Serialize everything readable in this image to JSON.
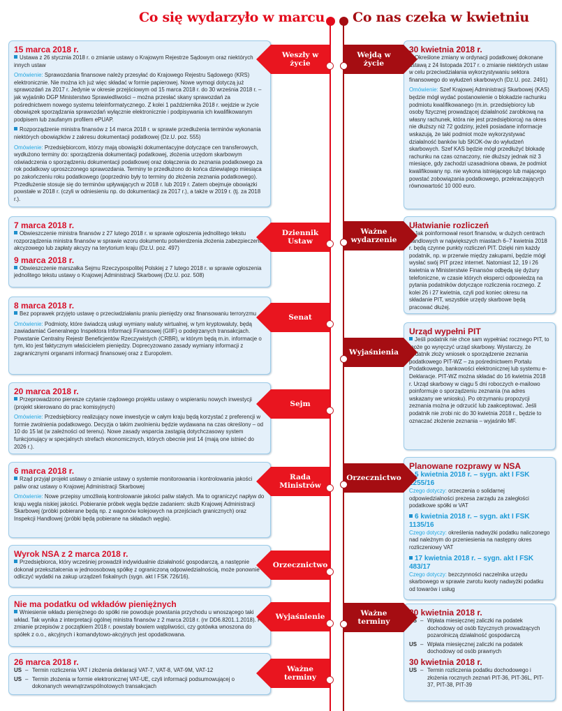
{
  "header": {
    "left_title": "Co się wydarzyło w marcu",
    "right_title": "Co nas czeka w kwietniu"
  },
  "colors": {
    "march": "#e9151f",
    "april": "#a50d12",
    "box_bg": "#e4f0fa",
    "note": "#22a6df"
  },
  "left": [
    {
      "label": "Weszły w życie",
      "blocks": [
        {
          "type": "title",
          "text": "15 marca 2018 r."
        },
        {
          "type": "bullet",
          "text": "Ustawa z 26 stycznia 2018 r. o zmianie ustawy o Krajowym Rejestrze Sądowym oraz niektórych innych ustaw"
        },
        {
          "type": "note",
          "label": "Omówienie:",
          "text": "Sprawozdania finansowe należy przesyłać do Krajowego Rejestru Sądowego (KRS) elektronicznie. Nie można ich już więc składać w formie papierowej. Nowe wymogi dotyczą już sprawozdań za 2017 r. Jedynie w okresie przejściowym od 15 marca 2018 r. do 30 września 2018 r. – jak wyjaśniło DGP Ministerstwo Sprawiedliwości – można przesłać skany sprawozdań za pośrednictwem nowego systemu teleinformatycznego. Z kolei 1 października 2018 r. wejdzie w życie obowiązek sporządzania sprawozdań wyłącznie elektronicznie i podpisywania ich kwalifikowanym podpisem lub zaufanym profilem ePUAP."
        },
        {
          "type": "bullet",
          "text": "Rozporządzenie ministra finansów z 14 marca 2018 r. w sprawie przedłużenia terminów wykonania niektórych obowiązków z zakresu dokumentacji podatkowej (Dz.U. poz. 555)"
        },
        {
          "type": "note",
          "label": "Omówienie:",
          "text": "Przedsiębiorcom, którzy mają obowiązki dokumentacyjne dotyczące cen transferowych, wydłużono terminy do: sporządzenia dokumentacji podatkowej, złożenia urzędom skarbowym oświadczenia o sporządzeniu dokumentacji podatkowej oraz dołączenia do zeznania podatkowego za rok podatkowy uproszczonego sprawozdania. Terminy te przedłużono do końca dziewiątego miesiąca po zakończeniu roku podatkowego (poprzednio były to terminy do złożenia zeznania podatkowego). Przedłużenie stosuje się do terminów upływających w 2018 r. lub 2019 r. Zatem obejmuje obowiązki powstałe w 2018 r. (czyli w odniesieniu np. do dokumentacji za 2017 r.), a także w 2019 r. (tj. za 2018 r.)."
        }
      ]
    },
    {
      "label": "Dziennik Ustaw",
      "blocks": [
        {
          "type": "title",
          "text": "7 marca 2018 r."
        },
        {
          "type": "bullet",
          "text": "Obwieszczenie ministra finansów z 27 lutego 2018 r. w sprawie ogłoszenia jednolitego tekstu rozporządzenia ministra finansów w sprawie wzoru dokumentu potwierdzenia złożenia zabezpieczenia akcyzowego lub zapłaty akcyzy na terytorium kraju (Dz.U. poz. 497)"
        },
        {
          "type": "title",
          "text": "9 marca 2018 r."
        },
        {
          "type": "bullet",
          "text": "Obwieszczenie marszałka Sejmu Rzeczypospolitej Polskiej z 7 lutego 2018 r. w sprawie ogłoszenia jednolitego tekstu ustawy o Krajowej Administracji Skarbowej (Dz.U. poz. 508)"
        }
      ]
    },
    {
      "label": "Senat",
      "blocks": [
        {
          "type": "title",
          "text": "8 marca 2018 r."
        },
        {
          "type": "bullet",
          "text": "Bez poprawek przyjęto ustawę o przeciwdziałaniu praniu pieniędzy oraz finansowaniu terroryzmu"
        },
        {
          "type": "note",
          "label": "Omówienie:",
          "text": "Podmioty, które świadczą usługi wymiany waluty wirtualnej, w tym kryptowaluty, będą zawiadamiać Generalnego Inspektora Informacji Finansowej (GIIF) o podejrzanych transakcjach. Powstanie Centralny Rejestr Beneficjentów Rzeczywistych (CRBR), w którym będą m.in. informacje o tym, kto jest faktycznym właścicielem pieniędzy. Doprecyzowano zasady wymiany informacji z zagranicznymi organami informacji finansowej oraz z Europolem."
        }
      ]
    },
    {
      "label": "Sejm",
      "blocks": [
        {
          "type": "title",
          "text": "20 marca 2018 r."
        },
        {
          "type": "bullet",
          "text": "Przeprowadzono pierwsze czytanie rządowego projektu ustawy o wspieraniu nowych inwestycji (projekt skierowano do prac komisyjnych)"
        },
        {
          "type": "note",
          "label": "Omówienie:",
          "text": "Przedsiębiorcy realizujący nowe inwestycje w całym kraju będą korzystać z preferencji w formie zwolnienia podatkowego. Decyzja o takim zwolnieniu będzie wydawana na czas określony – od 10 do 15 lat (w zależności od terenu). Nowe zasady wsparcia zastąpią dotychczasowy system funkcjonujący w specjalnych strefach ekonomicznych, których obecnie jest 14 (mają one istnieć do 2026 r.)."
        }
      ]
    },
    {
      "label": "Rada Ministrów",
      "blocks": [
        {
          "type": "title",
          "text": "6 marca 2018 r."
        },
        {
          "type": "bullet",
          "text": "Rząd przyjął projekt ustawy o zmianie ustawy o systemie monitorowania i kontrolowania jakości paliw oraz ustawy o Krajowej Administracji Skarbowej"
        },
        {
          "type": "note",
          "label": "Omówienie:",
          "text": "Nowe przepisy umożliwią kontrolowanie jakości paliw stałych. Ma to ograniczyć napływ do kraju węgla niskiej jakości. Pobieranie próbek węgla będzie zadaniem: służb Krajowej Administracji Skarbowej (próbki pobierane będą np. z wagonów kolejowych na przejściach granicznych) oraz Inspekcji Handlowej (próbki będą pobierane na składach węgla)."
        }
      ]
    },
    {
      "label": "Orzecznictwo",
      "blocks": [
        {
          "type": "title",
          "text": "Wyrok NSA z 2 marca 2018 r."
        },
        {
          "type": "bullet",
          "text": "Przedsiębiorca, który wcześniej prowadził indywidualnie działalność gospodarczą, a następnie dokonał przekształcenia w jednoosobową spółkę z ograniczoną odpowiedzialnością, może ponownie odliczyć wydatki na zakup urządzeń fiskalnych (sygn. akt I FSK 726/16)."
        }
      ]
    },
    {
      "label": "Wyjaśnienie",
      "blocks": [
        {
          "type": "title",
          "text": "Nie ma podatku od wkładów pieniężnych"
        },
        {
          "type": "bullet",
          "text": "Wniesienie wkładu pieniężnego do spółki nie powoduje powstania przychodu u wnoszącego taki wkład. Tak wynika z interpretacji ogólnej ministra finansów z 2 marca 2018 r. (nr DD6.8201.1.2018). Po zmianie przepisów z początkiem 2018 r. powstały bowiem wątpliwości, czy gotówka wnoszona do spółek z o.o., akcyjnych i komandytowo-akcyjnych jest opodatkowana."
        }
      ]
    },
    {
      "label": "Ważne terminy",
      "blocks": [
        {
          "type": "title",
          "text": "26 marca 2018 r."
        },
        {
          "type": "us",
          "label": "US",
          "text": "Termin rozliczenia VAT i złożenia deklaracji VAT-7, VAT-8, VAT-9M, VAT-12"
        },
        {
          "type": "us",
          "label": "US",
          "text": "Termin złożenia w formie elektronicznej VAT-UE, czyli informacji podsumowującej o dokonanych wewnątrzwspólnotowych transakcjach"
        }
      ]
    }
  ],
  "right": [
    {
      "label": "Wejdą w życie",
      "blocks": [
        {
          "type": "title",
          "text": "30 kwietnia 2018 r."
        },
        {
          "type": "bullet",
          "text": "Określone zmiany w ordynacji podatkowej dokonane ustawą z 24 listopada 2017 r. o zmianie niektórych ustaw w celu przeciwdziałania wykorzystywaniu sektora finansowego do wyłudzeń skarbowych (Dz.U. poz. 2491)"
        },
        {
          "type": "note",
          "label": "Omówienie:",
          "text": "Szef Krajowej Administracji Skarbowej (KAS) będzie mógł wydać postanowienie o blokadzie rachunku podmiotu kwalifikowanego (m.in. przedsiębiorcy lub osoby fizycznej prowadzącej działalność zarobkową na własny rachunek, która nie jest przedsiębiorcą) na okres nie dłuższy niż 72 godziny, jeżeli posiadane informacje wskazują, że taki podmiot może wykorzystywać działalność banków lub SKOK-ów do wyłudzeń skarbowych. Szef KAS będzie mógł przedłużyć blokadę rachunku na czas oznaczony, nie dłuższy jednak niż 3 miesiące, gdy zachodzi uzasadniona obawa, że podmiot kwalifikowany np. nie wykona istniejącego lub mającego powstać zobowiązania podatkowego, przekraczających równowartość 10 000 euro."
        }
      ]
    },
    {
      "label": "Ważne wydarzenie",
      "blocks": [
        {
          "type": "title",
          "text": "Ułatwianie rozliczeń"
        },
        {
          "type": "bullet",
          "text": "Jak poinformował resort finansów, w dużych centrach handlowych w największych miastach 6–7 kwietnia 2018 r. będą czynne punkty rozliczeń PIT. Dzięki nim każdy podatnik, np. w przerwie między zakupami, będzie mógł wysłać swój PIT przez internet. Natomiast 12, 19 i 26 kwietnia w Ministerstwie Finansów odbędą się dyżury telefoniczne, w czasie których eksperci odpowiedzą na pytania podatników dotyczące rozliczenia rocznego. Z kolei 26 i 27 kwietnia, czyli pod koniec okresu na składanie PIT, wszystkie urzędy skarbowe będą pracować dłużej."
        }
      ]
    },
    {
      "label": "Wyjaśnienia",
      "blocks": [
        {
          "type": "title",
          "text": "Urząd wypełni PIT"
        },
        {
          "type": "bullet",
          "text": "Jeśli podatnik nie chce sam wypełniać rocznego PIT, to może go wyręczyć urząd skarbowy. Wystarczy, że podatnik złoży wniosek o sporządzenie zeznania podatkowego PIT-WZ – za pośrednictwem Portalu Podatkowego, bankowości elektronicznej lub systemu e-Deklaracje. PIT-WZ można składać do 16 kwietnia 2018 r. Urząd skarbowy w ciągu 5 dni roboczych e-mailowo poinformuje o sporządzeniu zeznania (na adres wskazany we wniosku). Po otrzymaniu propozycji zeznania można je odrzucić lub zaakceptować. Jeśli podatnik nie zrobi nic do 30 kwietnia 2018 r., będzie to oznaczać złożenie zeznania – wyjaśniło MF."
        }
      ]
    },
    {
      "label": "Orzecznictwo",
      "blocks": [
        {
          "type": "title",
          "text": "Planowane rozprawy w NSA"
        },
        {
          "type": "sub",
          "text": "5 kwietnia 2018 r. – sygn. akt I FSK 1255/16"
        },
        {
          "type": "note",
          "label": "Czego dotyczy:",
          "text": "orzeczenia o solidarnej odpowiedzialności prezesa zarządu za zaległości podatkowe spółki w VAT"
        },
        {
          "type": "sub",
          "text": "6 kwietnia 2018 r. – sygn. akt I FSK 1135/16"
        },
        {
          "type": "note",
          "label": "Czego dotyczy:",
          "text": "określenia nadwyżki podatku naliczonego nad należnym do przeniesienia na następny okres rozliczeniowy VAT"
        },
        {
          "type": "sub",
          "text": "17 kwietnia 2018 r. – sygn. akt I FSK 483/17"
        },
        {
          "type": "note",
          "label": "Czego dotyczy:",
          "text": "bezczynności naczelnika urzędu skarbowego w sprawie zwrotu kwoty nadwyżki podatku od towarów i usług"
        }
      ]
    },
    {
      "label": "Ważne terminy",
      "blocks": [
        {
          "type": "title",
          "text": "20 kwietnia 2018 r."
        },
        {
          "type": "us",
          "label": "US",
          "text": "Wpłata miesięcznej zaliczki na podatek dochodowy od osób fizycznych prowadzących pozarolniczą działalność gospodarczą"
        },
        {
          "type": "us",
          "label": "US",
          "text": "Wpłata miesięcznej zaliczki na podatek dochodowy od osób prawnych"
        },
        {
          "type": "title",
          "text": "30 kwietnia 2018 r."
        },
        {
          "type": "us",
          "label": "US",
          "text": "Termin rozliczenia podatku dochodowego i złożenia rocznych zeznań PIT-36, PIT-36L, PIT-37, PIT-38, PIT-39"
        }
      ]
    }
  ]
}
